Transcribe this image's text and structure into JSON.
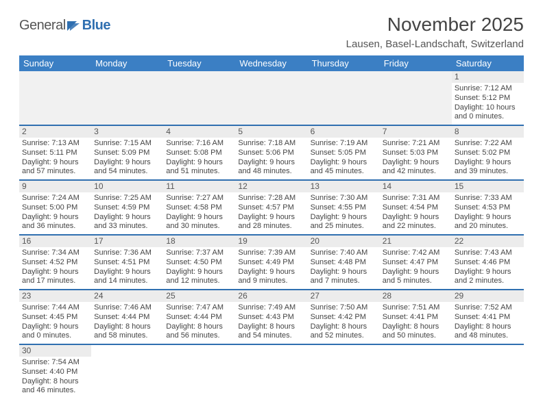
{
  "logo": {
    "part1": "General",
    "part2": "Blue"
  },
  "title": "November 2025",
  "location": "Lausen, Basel-Landschaft, Switzerland",
  "colors": {
    "header_bg": "#3b7fc4",
    "header_fg": "#ffffff",
    "rule": "#2f6fb0",
    "daynum_bg": "#ececec",
    "text": "#444444"
  },
  "dayNames": [
    "Sunday",
    "Monday",
    "Tuesday",
    "Wednesday",
    "Thursday",
    "Friday",
    "Saturday"
  ],
  "weeks": [
    [
      null,
      null,
      null,
      null,
      null,
      null,
      {
        "n": "1",
        "sr": "Sunrise: 7:12 AM",
        "ss": "Sunset: 5:12 PM",
        "d1": "Daylight: 10 hours",
        "d2": "and 0 minutes."
      }
    ],
    [
      {
        "n": "2",
        "sr": "Sunrise: 7:13 AM",
        "ss": "Sunset: 5:11 PM",
        "d1": "Daylight: 9 hours",
        "d2": "and 57 minutes."
      },
      {
        "n": "3",
        "sr": "Sunrise: 7:15 AM",
        "ss": "Sunset: 5:09 PM",
        "d1": "Daylight: 9 hours",
        "d2": "and 54 minutes."
      },
      {
        "n": "4",
        "sr": "Sunrise: 7:16 AM",
        "ss": "Sunset: 5:08 PM",
        "d1": "Daylight: 9 hours",
        "d2": "and 51 minutes."
      },
      {
        "n": "5",
        "sr": "Sunrise: 7:18 AM",
        "ss": "Sunset: 5:06 PM",
        "d1": "Daylight: 9 hours",
        "d2": "and 48 minutes."
      },
      {
        "n": "6",
        "sr": "Sunrise: 7:19 AM",
        "ss": "Sunset: 5:05 PM",
        "d1": "Daylight: 9 hours",
        "d2": "and 45 minutes."
      },
      {
        "n": "7",
        "sr": "Sunrise: 7:21 AM",
        "ss": "Sunset: 5:03 PM",
        "d1": "Daylight: 9 hours",
        "d2": "and 42 minutes."
      },
      {
        "n": "8",
        "sr": "Sunrise: 7:22 AM",
        "ss": "Sunset: 5:02 PM",
        "d1": "Daylight: 9 hours",
        "d2": "and 39 minutes."
      }
    ],
    [
      {
        "n": "9",
        "sr": "Sunrise: 7:24 AM",
        "ss": "Sunset: 5:00 PM",
        "d1": "Daylight: 9 hours",
        "d2": "and 36 minutes."
      },
      {
        "n": "10",
        "sr": "Sunrise: 7:25 AM",
        "ss": "Sunset: 4:59 PM",
        "d1": "Daylight: 9 hours",
        "d2": "and 33 minutes."
      },
      {
        "n": "11",
        "sr": "Sunrise: 7:27 AM",
        "ss": "Sunset: 4:58 PM",
        "d1": "Daylight: 9 hours",
        "d2": "and 30 minutes."
      },
      {
        "n": "12",
        "sr": "Sunrise: 7:28 AM",
        "ss": "Sunset: 4:57 PM",
        "d1": "Daylight: 9 hours",
        "d2": "and 28 minutes."
      },
      {
        "n": "13",
        "sr": "Sunrise: 7:30 AM",
        "ss": "Sunset: 4:55 PM",
        "d1": "Daylight: 9 hours",
        "d2": "and 25 minutes."
      },
      {
        "n": "14",
        "sr": "Sunrise: 7:31 AM",
        "ss": "Sunset: 4:54 PM",
        "d1": "Daylight: 9 hours",
        "d2": "and 22 minutes."
      },
      {
        "n": "15",
        "sr": "Sunrise: 7:33 AM",
        "ss": "Sunset: 4:53 PM",
        "d1": "Daylight: 9 hours",
        "d2": "and 20 minutes."
      }
    ],
    [
      {
        "n": "16",
        "sr": "Sunrise: 7:34 AM",
        "ss": "Sunset: 4:52 PM",
        "d1": "Daylight: 9 hours",
        "d2": "and 17 minutes."
      },
      {
        "n": "17",
        "sr": "Sunrise: 7:36 AM",
        "ss": "Sunset: 4:51 PM",
        "d1": "Daylight: 9 hours",
        "d2": "and 14 minutes."
      },
      {
        "n": "18",
        "sr": "Sunrise: 7:37 AM",
        "ss": "Sunset: 4:50 PM",
        "d1": "Daylight: 9 hours",
        "d2": "and 12 minutes."
      },
      {
        "n": "19",
        "sr": "Sunrise: 7:39 AM",
        "ss": "Sunset: 4:49 PM",
        "d1": "Daylight: 9 hours",
        "d2": "and 9 minutes."
      },
      {
        "n": "20",
        "sr": "Sunrise: 7:40 AM",
        "ss": "Sunset: 4:48 PM",
        "d1": "Daylight: 9 hours",
        "d2": "and 7 minutes."
      },
      {
        "n": "21",
        "sr": "Sunrise: 7:42 AM",
        "ss": "Sunset: 4:47 PM",
        "d1": "Daylight: 9 hours",
        "d2": "and 5 minutes."
      },
      {
        "n": "22",
        "sr": "Sunrise: 7:43 AM",
        "ss": "Sunset: 4:46 PM",
        "d1": "Daylight: 9 hours",
        "d2": "and 2 minutes."
      }
    ],
    [
      {
        "n": "23",
        "sr": "Sunrise: 7:44 AM",
        "ss": "Sunset: 4:45 PM",
        "d1": "Daylight: 9 hours",
        "d2": "and 0 minutes."
      },
      {
        "n": "24",
        "sr": "Sunrise: 7:46 AM",
        "ss": "Sunset: 4:44 PM",
        "d1": "Daylight: 8 hours",
        "d2": "and 58 minutes."
      },
      {
        "n": "25",
        "sr": "Sunrise: 7:47 AM",
        "ss": "Sunset: 4:44 PM",
        "d1": "Daylight: 8 hours",
        "d2": "and 56 minutes."
      },
      {
        "n": "26",
        "sr": "Sunrise: 7:49 AM",
        "ss": "Sunset: 4:43 PM",
        "d1": "Daylight: 8 hours",
        "d2": "and 54 minutes."
      },
      {
        "n": "27",
        "sr": "Sunrise: 7:50 AM",
        "ss": "Sunset: 4:42 PM",
        "d1": "Daylight: 8 hours",
        "d2": "and 52 minutes."
      },
      {
        "n": "28",
        "sr": "Sunrise: 7:51 AM",
        "ss": "Sunset: 4:41 PM",
        "d1": "Daylight: 8 hours",
        "d2": "and 50 minutes."
      },
      {
        "n": "29",
        "sr": "Sunrise: 7:52 AM",
        "ss": "Sunset: 4:41 PM",
        "d1": "Daylight: 8 hours",
        "d2": "and 48 minutes."
      }
    ],
    [
      {
        "n": "30",
        "sr": "Sunrise: 7:54 AM",
        "ss": "Sunset: 4:40 PM",
        "d1": "Daylight: 8 hours",
        "d2": "and 46 minutes."
      },
      null,
      null,
      null,
      null,
      null,
      null
    ]
  ]
}
